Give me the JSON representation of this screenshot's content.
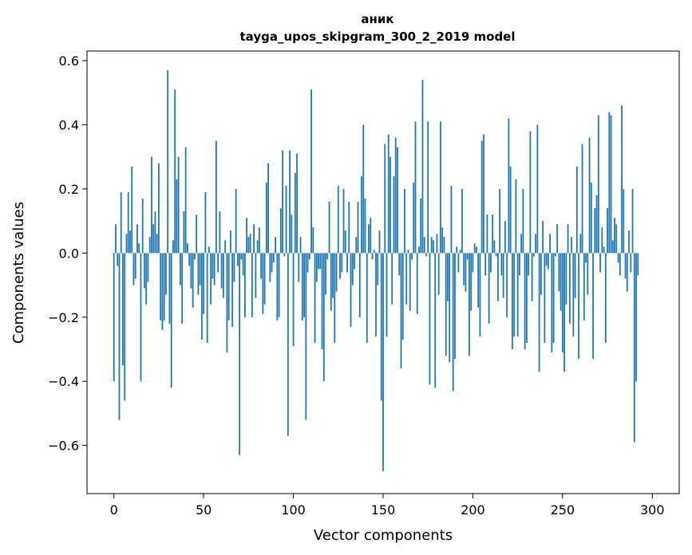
{
  "chart_data": {
    "type": "bar",
    "title_line1": "аник",
    "title_line2": "tayga_upos_skipgram_300_2_2019 model",
    "xlabel": "Vector components",
    "ylabel": "Components values",
    "xlim": [
      -15,
      315
    ],
    "ylim": [
      -0.75,
      0.63
    ],
    "xticks": [
      0,
      50,
      100,
      150,
      200,
      250,
      300
    ],
    "xtick_labels": [
      "0",
      "50",
      "100",
      "150",
      "200",
      "250",
      "300"
    ],
    "yticks": [
      -0.6,
      -0.4,
      -0.2,
      0.0,
      0.2,
      0.4,
      0.6
    ],
    "ytick_labels": [
      "−0.6",
      "−0.4",
      "−0.2",
      "0.0",
      "0.2",
      "0.4",
      "0.6"
    ],
    "bar_color": "#1f77b4",
    "values": [
      -0.4,
      0.09,
      -0.04,
      -0.52,
      0.19,
      -0.35,
      -0.46,
      0.06,
      0.19,
      0.07,
      0.27,
      -0.1,
      -0.08,
      0.09,
      0.03,
      -0.4,
      0.17,
      -0.11,
      -0.16,
      -0.09,
      0.05,
      0.3,
      0.09,
      0.13,
      0.06,
      0.28,
      -0.21,
      -0.24,
      -0.21,
      -0.13,
      0.57,
      -0.22,
      -0.42,
      0.04,
      0.51,
      0.23,
      0.3,
      -0.1,
      -0.22,
      0.13,
      0.33,
      0.03,
      -0.04,
      -0.11,
      -0.17,
      -0.02,
      0.12,
      -0.13,
      -0.1,
      -0.27,
      -0.19,
      0.19,
      -0.28,
      0.02,
      -0.16,
      -0.08,
      -0.1,
      0.35,
      -0.06,
      0.13,
      -0.11,
      -0.14,
      0.04,
      -0.31,
      -0.21,
      0.07,
      -0.23,
      -0.09,
      0.2,
      -0.04,
      -0.63,
      -0.02,
      -0.07,
      -0.2,
      0.11,
      0.05,
      0.06,
      -0.2,
      0.09,
      -0.14,
      0.04,
      0.08,
      -0.08,
      -0.19,
      -0.16,
      0.22,
      0.28,
      -0.09,
      -0.06,
      -0.03,
      0.05,
      -0.21,
      -0.2,
      0.14,
      0.32,
      -0.01,
      0.21,
      -0.57,
      0.32,
      0.12,
      -0.29,
      0.25,
      0.31,
      -0.09,
      0.05,
      -0.21,
      -0.2,
      -0.52,
      -0.06,
      -0.02,
      0.51,
      0.08,
      -0.28,
      -0.09,
      -0.05,
      -0.05,
      -0.3,
      -0.4,
      -0.13,
      -0.02,
      0.16,
      -0.18,
      -0.14,
      -0.28,
      -0.12,
      0.21,
      -0.08,
      -0.06,
      0.2,
      0.07,
      -0.06,
      0.16,
      -0.23,
      -0.1,
      -0.05,
      0.05,
      0.16,
      -0.2,
      0.24,
      0.4,
      0.17,
      -0.28,
      0.09,
      0.11,
      -0.02,
      0.01,
      -0.26,
      -0.1,
      0.07,
      -0.46,
      -0.68,
      0.34,
      -0.26,
      0.37,
      0.3,
      -0.16,
      0.24,
      0.36,
      0.33,
      -0.07,
      -0.36,
      -0.27,
      0.2,
      -0.16,
      0.01,
      -0.18,
      -0.02,
      0.22,
      0.41,
      -0.19,
      0.02,
      0.17,
      0.54,
      0.05,
      -0.01,
      0.41,
      -0.41,
      0.05,
      0.04,
      -0.42,
      0.06,
      -0.13,
      0.41,
      0.08,
      0.05,
      -0.32,
      -0.15,
      -0.34,
      0.21,
      -0.43,
      -0.33,
      0.02,
      -0.06,
      0.01,
      0.2,
      -0.1,
      -0.12,
      -0.02,
      -0.32,
      -0.18,
      -0.06,
      0.03,
      0.02,
      -0.17,
      -0.26,
      0.35,
      0.37,
      -0.07,
      0.12,
      -0.22,
      -0.06,
      0.12,
      0.04,
      -0.01,
      -0.15,
      0.2,
      -0.07,
      -0.14,
      0.1,
      -0.2,
      0.42,
      0.27,
      -0.3,
      -0.26,
      0.23,
      -0.26,
      -0.07,
      0.06,
      0.2,
      -0.3,
      -0.28,
      -0.07,
      0.38,
      -0.15,
      -0.01,
      0.06,
      0.4,
      -0.37,
      -0.13,
      0.1,
      -0.28,
      -0.04,
      -0.05,
      0.06,
      -0.31,
      -0.28,
      -0.01,
      0.09,
      -0.12,
      -0.18,
      -0.31,
      -0.37,
      -0.16,
      0.09,
      -0.22,
      0.05,
      -0.26,
      -0.14,
      0.27,
      -0.33,
      0.06,
      0.34,
      -0.21,
      -0.03,
      -0.13,
      0.36,
      0.22,
      -0.33,
      0.14,
      0.18,
      0.43,
      -0.06,
      0.08,
      0.02,
      -0.28,
      0.14,
      0.44,
      0.43,
      0.04,
      0.11,
      0.09,
      -0.03,
      -0.07,
      0.46,
      0.2,
      -0.08,
      -0.12,
      0.07,
      -0.06,
      0.2,
      -0.59,
      -0.4,
      -0.07
    ]
  }
}
